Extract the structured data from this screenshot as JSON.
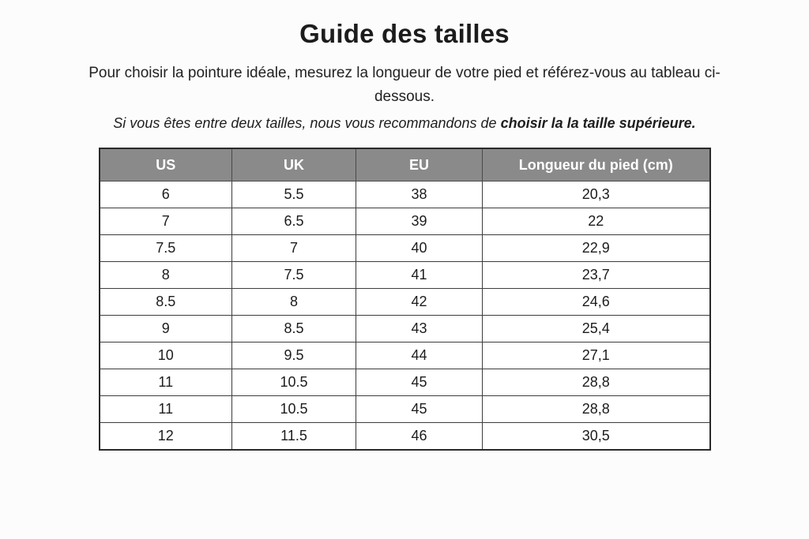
{
  "page": {
    "title": "Guide des tailles",
    "subtitle": "Pour choisir la pointure idéale, mesurez la longueur de votre pied et référez-vous au tableau ci-dessous.",
    "note_prefix": "Si vous êtes entre deux tailles, nous vous recommandons de ",
    "note_bold": "choisir la la taille supérieure."
  },
  "colors": {
    "page_background": "#fcfcfc",
    "header_background": "#8a8a8a",
    "header_text": "#ffffff",
    "body_text": "#1e1e1e",
    "table_border": "#2a2a2a"
  },
  "table": {
    "columns": [
      "US",
      "UK",
      "EU",
      "Longueur du pied (cm)"
    ],
    "rows": [
      [
        "6",
        "5.5",
        "38",
        "20,3"
      ],
      [
        "7",
        "6.5",
        "39",
        "22"
      ],
      [
        "7.5",
        "7",
        "40",
        "22,9"
      ],
      [
        "8",
        "7.5",
        "41",
        "23,7"
      ],
      [
        "8.5",
        "8",
        "42",
        "24,6"
      ],
      [
        "9",
        "8.5",
        "43",
        "25,4"
      ],
      [
        "10",
        "9.5",
        "44",
        "27,1"
      ],
      [
        "11",
        "10.5",
        "45",
        "28,8"
      ],
      [
        "11",
        "10.5",
        "45",
        "28,8"
      ],
      [
        "12",
        "11.5",
        "46",
        "30,5"
      ]
    ]
  }
}
